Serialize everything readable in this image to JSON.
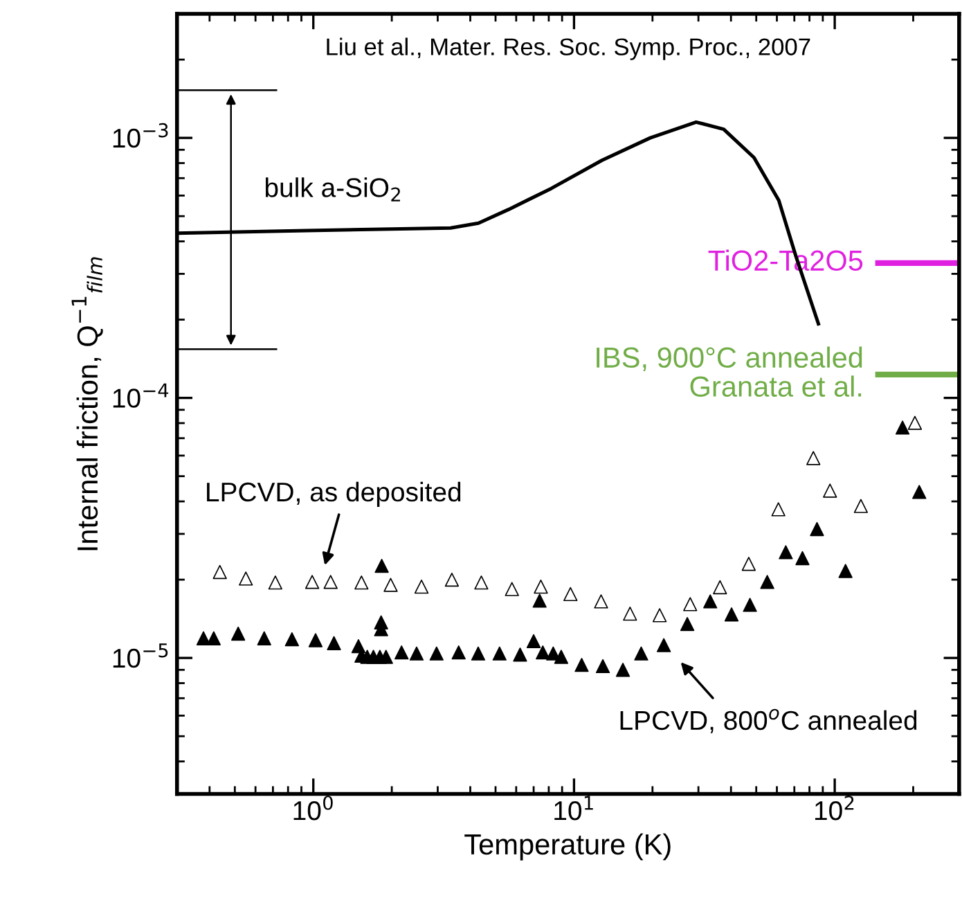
{
  "chart_data": {
    "type": "scatter",
    "xlabel": "Temperature (K)",
    "ylabel": "Internal friction, Q$^{−1}$$_{film}$",
    "log": "xy",
    "xlim": [
      0.3,
      300
    ],
    "ylim": [
      3e-06,
      0.003
    ],
    "xticks": [
      {
        "value": 1,
        "label": "10$^{0}$"
      },
      {
        "value": 10,
        "label": "10$^{1}$"
      },
      {
        "value": 100,
        "label": "10$^{2}$"
      }
    ],
    "yticks": [
      {
        "value": 1e-05,
        "label": "10$^{−5}$"
      },
      {
        "value": 0.0001,
        "label": "10$^{−4}$"
      },
      {
        "value": 0.001,
        "label": "10$^{−3}$"
      }
    ],
    "grid": false,
    "legend": false,
    "annotations": [
      "Liu et al., Mater. Res. Soc. Symp. Proc., 2007",
      "bulk a-SiO$_{2}$",
      "LPCVD, as deposited",
      "LPCVD, 800$^{o}$C annealed"
    ],
    "series": [
      {
        "type": "line",
        "color": "#000000",
        "marker": "none",
        "line_style": "solid",
        "x": [
          0.3,
          0.94,
          3.36,
          4.3,
          5.6,
          8.2,
          12.8,
          19.6,
          29.4,
          37.5,
          49,
          61,
          71,
          87
        ],
        "values": [
          0.00043,
          0.00044,
          0.00045,
          0.00047,
          0.00053,
          0.00064,
          0.00082,
          0.001,
          0.00115,
          0.00108,
          0.00084,
          0.000575,
          0.00035,
          0.00019
        ]
      },
      {
        "color": "#ffffff",
        "marker": "triangle",
        "x": [
          0.438,
          0.551,
          0.715,
          0.99,
          1.165,
          1.53,
          1.98,
          2.6,
          3.4,
          4.41,
          5.78,
          7.46,
          9.69,
          12.7,
          16.4,
          21.3,
          27.9,
          36.3,
          46.8,
          60.8,
          82.8,
          95.9,
          126,
          203
        ],
        "values": [
          2.14e-05,
          2.02e-05,
          1.95e-05,
          1.96e-05,
          1.96e-05,
          1.95e-05,
          1.91e-05,
          1.88e-05,
          2e-05,
          1.95e-05,
          1.84e-05,
          1.88e-05,
          1.76e-05,
          1.65e-05,
          1.48e-05,
          1.46e-05,
          1.61e-05,
          1.87e-05,
          2.3e-05,
          3.73e-05,
          5.87e-05,
          4.4e-05,
          3.84e-05,
          8.02e-05
        ]
      },
      {
        "color": "#000000",
        "marker": "triangle",
        "x": [
          0.379,
          0.415,
          0.515,
          0.648,
          0.828,
          1.02,
          1.2,
          1.49,
          1.53,
          1.61,
          1.7,
          1.8,
          1.9,
          1.82,
          1.82,
          1.83,
          2.18,
          2.49,
          2.97,
          3.61,
          4.29,
          5.18,
          6.21,
          7.0,
          7.38,
          7.59,
          8.32,
          8.93,
          10.7,
          12.9,
          15.4,
          18.1,
          22.1,
          27.2,
          33.3,
          40.2,
          47.3,
          55.1,
          64.9,
          75.2,
          85.5,
          110,
          211,
          182
        ],
        "values": [
          1.19e-05,
          1.19e-05,
          1.24e-05,
          1.19e-05,
          1.18e-05,
          1.17e-05,
          1.14e-05,
          1.11e-05,
          1.02e-05,
          1.01e-05,
          1.01e-05,
          1.01e-05,
          1.01e-05,
          1.37e-05,
          1.29e-05,
          2.26e-05,
          1.05e-05,
          1.04e-05,
          1.04e-05,
          1.05e-05,
          1.04e-05,
          1.04e-05,
          1.03e-05,
          1.16e-05,
          1.66e-05,
          1.05e-05,
          1.04e-05,
          1.01e-05,
          9.4e-06,
          9.3e-06,
          9e-06,
          1.04e-05,
          1.12e-05,
          1.35e-05,
          1.65e-05,
          1.47e-05,
          1.6e-05,
          1.96e-05,
          2.55e-05,
          2.42e-05,
          3.13e-05,
          2.16e-05,
          4.35e-05,
          7.69e-05
        ]
      },
      {
        "type": "line",
        "name": "TiO2-Ta2O5",
        "color": "#e020e0",
        "marker": "none",
        "line_style": "solid",
        "x": [
          143,
          300
        ],
        "values": [
          0.00033,
          0.00033
        ]
      },
      {
        "type": "line",
        "name": "IBS, 900°C annealed\nGranata et al.",
        "color": "#70ad47",
        "marker": "none",
        "line_style": "solid",
        "x": [
          143,
          300
        ],
        "values": [
          0.000123,
          0.000123
        ]
      }
    ]
  }
}
